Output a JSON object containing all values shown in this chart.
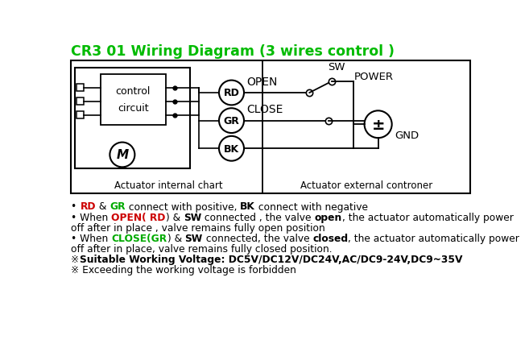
{
  "title": "CR3 01 Wiring Diagram (3 wires control )",
  "title_color": "#00bb00",
  "background_color": "#ffffff",
  "label_actuator_internal": "Actuator internal chart",
  "label_actuator_external": "Actuator external controner",
  "label_control": "control",
  "label_circuit": "circuit",
  "label_M": "M",
  "label_RD": "RD",
  "label_GR": "GR",
  "label_BK": "BK",
  "label_OPEN": "OPEN",
  "label_CLOSE": "CLOSE",
  "label_SW": "SW",
  "label_POWER": "POWER",
  "label_GND": "GND",
  "label_pm": "±"
}
